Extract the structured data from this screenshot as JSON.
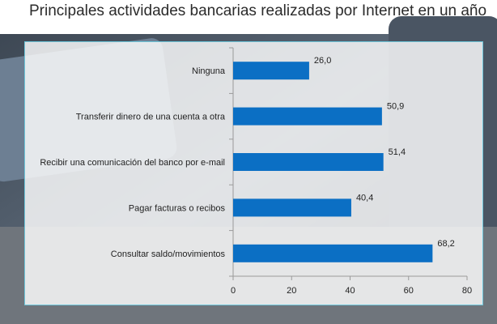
{
  "page": {
    "title": "Principales actividades bancarias realizadas por Internet en un año"
  },
  "colors": {
    "bar": "#0b6fc4",
    "axis": "#9a9a9a",
    "text": "#222222",
    "panel_border": "#6ec6da"
  },
  "chart_data": {
    "type": "bar",
    "orientation": "horizontal",
    "title": "Principales actividades bancarias realizadas por Internet en un año",
    "categories": [
      "Ninguna",
      "Transferir dinero de una cuenta a otra",
      "Recibir una comunicación del banco por e-mail",
      "Pagar facturas o recibos",
      "Consultar saldo/movimientos"
    ],
    "values": [
      26.0,
      50.9,
      51.4,
      40.4,
      68.2
    ],
    "value_labels": [
      "26,0",
      "50,9",
      "51,4",
      "40,4",
      "68,2"
    ],
    "xlim": [
      0,
      80
    ],
    "xticks": [
      0,
      20,
      40,
      60,
      80
    ],
    "xlabel": "",
    "ylabel": "",
    "grid": false,
    "legend": "none"
  }
}
